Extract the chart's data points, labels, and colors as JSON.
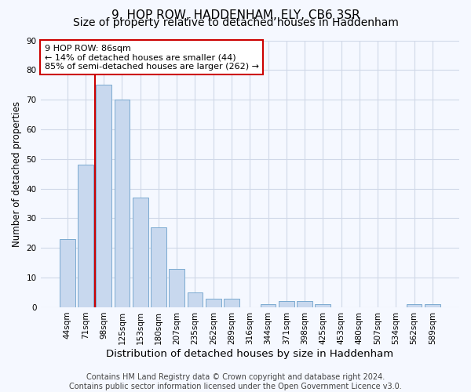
{
  "title": "9, HOP ROW, HADDENHAM, ELY, CB6 3SR",
  "subtitle": "Size of property relative to detached houses in Haddenham",
  "xlabel": "Distribution of detached houses by size in Haddenham",
  "ylabel": "Number of detached properties",
  "bar_labels": [
    "44sqm",
    "71sqm",
    "98sqm",
    "125sqm",
    "153sqm",
    "180sqm",
    "207sqm",
    "235sqm",
    "262sqm",
    "289sqm",
    "316sqm",
    "344sqm",
    "371sqm",
    "398sqm",
    "425sqm",
    "453sqm",
    "480sqm",
    "507sqm",
    "534sqm",
    "562sqm",
    "589sqm"
  ],
  "bar_values": [
    23,
    48,
    75,
    70,
    37,
    27,
    13,
    5,
    3,
    3,
    0,
    1,
    2,
    2,
    1,
    0,
    0,
    0,
    0,
    1,
    1
  ],
  "ylim": [
    0,
    90
  ],
  "yticks": [
    0,
    10,
    20,
    30,
    40,
    50,
    60,
    70,
    80,
    90
  ],
  "bar_color": "#c8d8ee",
  "bar_edge_color": "#7aaad0",
  "vline_x_idx": 1.5,
  "vline_color": "#cc0000",
  "annotation_text_line1": "9 HOP ROW: 86sqm",
  "annotation_text_line2": "← 14% of detached houses are smaller (44)",
  "annotation_text_line3": "85% of semi-detached houses are larger (262) →",
  "annotation_box_color": "#cc0000",
  "annotation_fill_color": "#ffffff",
  "footer_line1": "Contains HM Land Registry data © Crown copyright and database right 2024.",
  "footer_line2": "Contains public sector information licensed under the Open Government Licence v3.0.",
  "background_color": "#f5f8ff",
  "plot_bg_color": "#f5f8ff",
  "grid_color": "#d0d8e8",
  "title_fontsize": 11,
  "subtitle_fontsize": 10,
  "xlabel_fontsize": 9.5,
  "ylabel_fontsize": 8.5,
  "tick_fontsize": 7.5,
  "annotation_fontsize": 8,
  "footer_fontsize": 7
}
